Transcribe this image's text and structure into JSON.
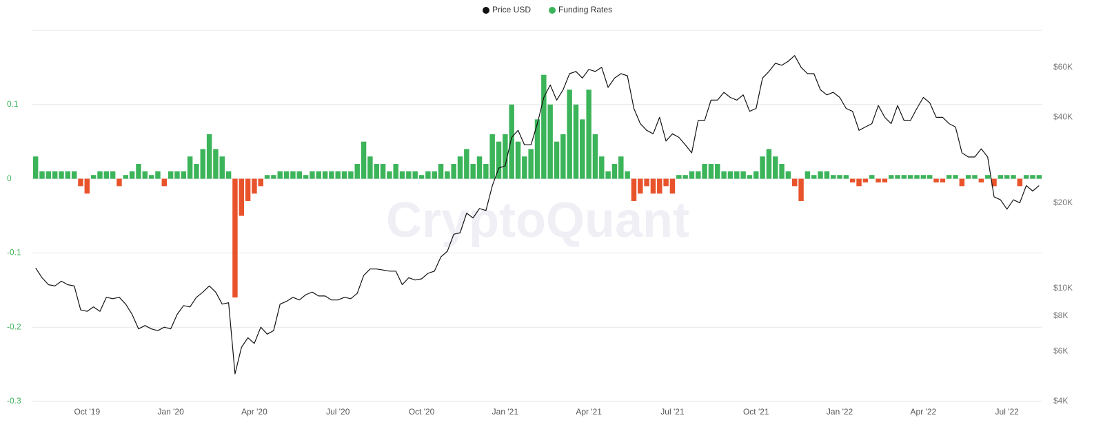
{
  "chart_data": {
    "type": "bar",
    "watermark": "CryptoQuant",
    "categories": [
      null,
      null,
      null,
      null,
      null,
      null,
      null,
      null,
      "Oct '19",
      null,
      null,
      null,
      null,
      null,
      null,
      null,
      null,
      null,
      null,
      null,
      null,
      "Jan '20",
      null,
      null,
      null,
      null,
      null,
      null,
      null,
      null,
      null,
      null,
      null,
      null,
      "Apr '20",
      null,
      null,
      null,
      null,
      null,
      null,
      null,
      null,
      null,
      null,
      null,
      null,
      "Jul '20",
      null,
      null,
      null,
      null,
      null,
      null,
      null,
      null,
      null,
      null,
      null,
      null,
      "Oct '20",
      null,
      null,
      null,
      null,
      null,
      null,
      null,
      null,
      null,
      null,
      null,
      null,
      "Jan '21",
      null,
      null,
      null,
      null,
      null,
      null,
      null,
      null,
      null,
      null,
      null,
      null,
      "Apr '21",
      null,
      null,
      null,
      null,
      null,
      null,
      null,
      null,
      null,
      null,
      null,
      null,
      "Jul '21",
      null,
      null,
      null,
      null,
      null,
      null,
      null,
      null,
      null,
      null,
      null,
      null,
      "Oct '21",
      null,
      null,
      null,
      null,
      null,
      null,
      null,
      null,
      null,
      null,
      null,
      null,
      "Jan '22",
      null,
      null,
      null,
      null,
      null,
      null,
      null,
      null,
      null,
      null,
      null,
      null,
      "Apr '22",
      null,
      null,
      null,
      null,
      null,
      null,
      null,
      null,
      null,
      null,
      null,
      null,
      "Jul '22",
      null,
      null,
      null,
      null,
      null
    ],
    "series": [
      {
        "name": "Price USD",
        "type": "line",
        "axis": "y2",
        "color": "#111111",
        "values": [
          11800,
          10900,
          10300,
          10200,
          10600,
          10300,
          10200,
          8400,
          8300,
          8600,
          8300,
          9300,
          9200,
          9300,
          8800,
          8100,
          7200,
          7400,
          7200,
          7100,
          7300,
          7200,
          8100,
          8700,
          8600,
          9300,
          9700,
          10200,
          9700,
          8800,
          8900,
          5000,
          6200,
          6700,
          6400,
          7300,
          6900,
          7100,
          8800,
          9000,
          9300,
          9100,
          9500,
          9700,
          9400,
          9400,
          9100,
          9100,
          9300,
          9200,
          9600,
          11100,
          11700,
          11700,
          11600,
          11500,
          11500,
          10300,
          10900,
          10700,
          10800,
          11300,
          11500,
          12900,
          13500,
          15500,
          15700,
          18400,
          17700,
          19100,
          18800,
          23000,
          26500,
          27000,
          34000,
          36000,
          32000,
          32000,
          38000,
          47000,
          52000,
          46000,
          50000,
          57000,
          58000,
          55000,
          59000,
          58000,
          60000,
          51000,
          55000,
          57000,
          56000,
          43000,
          38000,
          36000,
          35000,
          40000,
          33000,
          35000,
          34000,
          32000,
          30000,
          39000,
          39000,
          46000,
          46000,
          49000,
          47000,
          46000,
          48000,
          42000,
          43000,
          55000,
          58000,
          62000,
          61000,
          63000,
          66000,
          60000,
          57000,
          57000,
          50000,
          48000,
          49000,
          47000,
          43000,
          42000,
          36000,
          37000,
          38000,
          44000,
          40000,
          38000,
          44000,
          39000,
          39000,
          43000,
          47000,
          45000,
          40000,
          40000,
          38000,
          37000,
          30000,
          29000,
          29000,
          31000,
          29000,
          21000,
          20500,
          19000,
          20500,
          20000,
          23000,
          22000,
          23000
        ]
      },
      {
        "name": "Funding Rates",
        "type": "bar",
        "color": "#3cb45a",
        "negative_color": "#e9532b",
        "values": [
          0.03,
          0.01,
          0.01,
          0.01,
          0.01,
          0.01,
          0.01,
          -0.01,
          -0.02,
          0.005,
          0.01,
          0.01,
          0.01,
          -0.01,
          0.005,
          0.01,
          0.02,
          0.01,
          0.005,
          0.01,
          -0.01,
          0.01,
          0.01,
          0.01,
          0.03,
          0.02,
          0.04,
          0.06,
          0.04,
          0.03,
          0.01,
          -0.16,
          -0.05,
          -0.03,
          -0.02,
          -0.01,
          0.005,
          0.005,
          0.01,
          0.01,
          0.01,
          0.01,
          0.005,
          0.01,
          0.01,
          0.01,
          0.01,
          0.01,
          0.01,
          0.01,
          0.02,
          0.05,
          0.03,
          0.02,
          0.02,
          0.01,
          0.02,
          0.01,
          0.01,
          0.01,
          0.005,
          0.01,
          0.01,
          0.02,
          0.01,
          0.02,
          0.03,
          0.04,
          0.02,
          0.03,
          0.02,
          0.06,
          0.05,
          0.06,
          0.1,
          0.05,
          0.03,
          0.04,
          0.08,
          0.14,
          0.1,
          0.05,
          0.06,
          0.12,
          0.1,
          0.08,
          0.12,
          0.06,
          0.03,
          0.01,
          0.02,
          0.03,
          0.01,
          -0.03,
          -0.02,
          -0.01,
          -0.02,
          -0.02,
          -0.01,
          -0.02,
          0.005,
          0.005,
          0.01,
          0.01,
          0.02,
          0.02,
          0.02,
          0.01,
          0.01,
          0.01,
          0.01,
          0.005,
          0.01,
          0.03,
          0.04,
          0.03,
          0.02,
          0.01,
          -0.01,
          -0.03,
          0.01,
          0.005,
          0.01,
          0.01,
          0.005,
          0.005,
          0.005,
          -0.005,
          -0.01,
          -0.005,
          0.005,
          -0.005,
          -0.005,
          0.005,
          0.005,
          0.005,
          0.005,
          0.005,
          0.005,
          0.005,
          -0.005,
          -0.005,
          0.005,
          0.005,
          -0.01,
          0.005,
          0.005,
          -0.005,
          0.005,
          -0.01,
          0.005,
          0.005,
          0.005,
          -0.01,
          0.005,
          0.005,
          0.005
        ]
      }
    ],
    "ylim": [
      -0.3,
      0.2
    ],
    "yticks": [
      -0.3,
      -0.2,
      -0.1,
      0,
      0.1
    ],
    "y2lim": [
      4000,
      81000
    ],
    "y2ticks": [
      {
        "value": 4000,
        "label": "$4K"
      },
      {
        "value": 6000,
        "label": "$6K"
      },
      {
        "value": 8000,
        "label": "$8K"
      },
      {
        "value": 10000,
        "label": "$10K"
      },
      {
        "value": 20000,
        "label": "$20K"
      },
      {
        "value": 40000,
        "label": "$40K"
      },
      {
        "value": 60000,
        "label": "$60K"
      }
    ],
    "y2log": true,
    "grid": true,
    "legend": "top"
  }
}
